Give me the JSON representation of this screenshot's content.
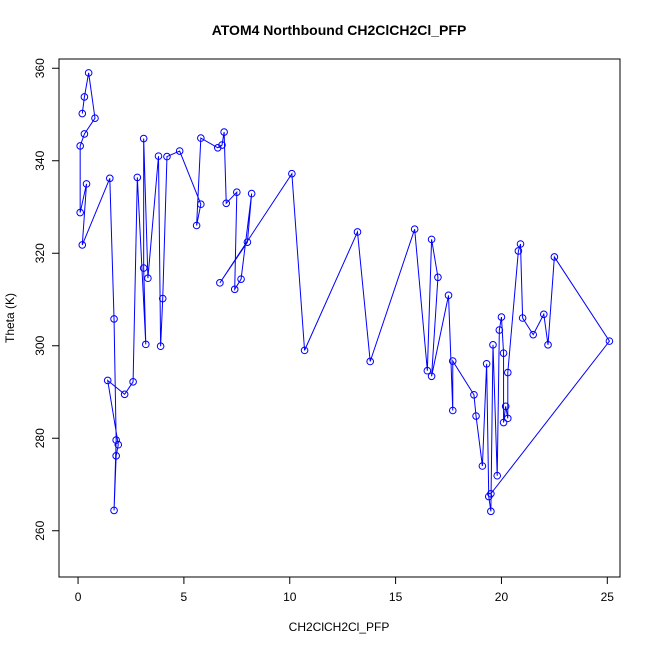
{
  "chart_data": {
    "type": "line",
    "title": "ATOM4 Northbound CH2ClCH2Cl_PFP",
    "xlabel": "CH2ClCH2Cl_PFP",
    "ylabel": "Theta (K)",
    "xlim": [
      -0.9,
      25.6
    ],
    "ylim": [
      250,
      362
    ],
    "xticks": [
      0,
      5,
      10,
      15,
      20,
      25
    ],
    "yticks": [
      260,
      280,
      300,
      320,
      340,
      360
    ],
    "grid": false,
    "marker": "open-circle",
    "color": "#0000ff",
    "series": [
      {
        "points": [
          [
            0.2,
            350.2
          ],
          [
            0.3,
            353.8
          ],
          [
            0.5,
            359
          ],
          [
            0.8,
            349.2
          ],
          [
            0.3,
            345.8
          ],
          [
            0.1,
            343.2
          ],
          [
            0.1,
            328.8
          ],
          [
            0.4,
            335
          ],
          [
            0.2,
            321.8
          ],
          [
            1.5,
            336.2
          ],
          [
            1.7,
            305.8
          ],
          [
            1.8,
            279.6
          ],
          [
            1.7,
            264.4
          ],
          [
            1.8,
            276.2
          ],
          [
            1.9,
            278.6
          ],
          [
            1.4,
            292.5
          ],
          [
            2.2,
            289.5
          ],
          [
            2.6,
            292.2
          ],
          [
            2.8,
            336.4
          ],
          [
            3.2,
            300.3
          ],
          [
            3.1,
            316.8
          ],
          [
            3.1,
            344.8
          ],
          [
            3.3,
            314.6
          ],
          [
            3.8,
            341
          ],
          [
            3.9,
            299.9
          ],
          [
            4.0,
            310.2
          ],
          [
            4.2,
            340.9
          ],
          [
            4.8,
            342.1
          ],
          [
            5.8,
            330.6
          ],
          [
            5.6,
            326
          ],
          [
            5.8,
            344.9
          ],
          [
            6.6,
            342.8
          ],
          [
            6.8,
            343.4
          ],
          [
            6.9,
            346.2
          ],
          [
            7.0,
            330.8
          ],
          [
            7.5,
            333.2
          ],
          [
            7.4,
            312.2
          ],
          [
            7.7,
            314.4
          ],
          [
            8.2,
            332.9
          ],
          [
            8.0,
            322.4
          ],
          [
            6.7,
            313.6
          ],
          [
            10.1,
            337.2
          ],
          [
            10.7,
            299
          ],
          [
            13.2,
            324.6
          ],
          [
            13.8,
            296.6
          ],
          [
            15.9,
            325.2
          ],
          [
            16.5,
            294.6
          ],
          [
            16.7,
            323
          ],
          [
            17.0,
            314.8
          ],
          [
            16.7,
            293.4
          ],
          [
            17.5,
            310.9
          ],
          [
            17.7,
            286
          ],
          [
            17.7,
            296.7
          ],
          [
            18.7,
            289.4
          ],
          [
            18.8,
            284.8
          ],
          [
            19.1,
            274
          ],
          [
            19.3,
            296.1
          ],
          [
            19.4,
            267.4
          ],
          [
            19.5,
            264.2
          ],
          [
            19.6,
            300.2
          ],
          [
            19.8,
            271.9
          ],
          [
            19.9,
            303.4
          ],
          [
            20.0,
            306.2
          ],
          [
            20.1,
            298.4
          ],
          [
            20.1,
            283.4
          ],
          [
            20.2,
            286.9
          ],
          [
            20.3,
            284.3
          ],
          [
            20.3,
            294.2
          ],
          [
            20.8,
            320.5
          ],
          [
            20.9,
            322
          ],
          [
            21.0,
            306
          ],
          [
            21.5,
            302.4
          ],
          [
            22.0,
            306.8
          ],
          [
            22.2,
            300.2
          ],
          [
            22.5,
            319.2
          ],
          [
            25.1,
            301
          ],
          [
            19.5,
            268
          ]
        ]
      }
    ]
  }
}
